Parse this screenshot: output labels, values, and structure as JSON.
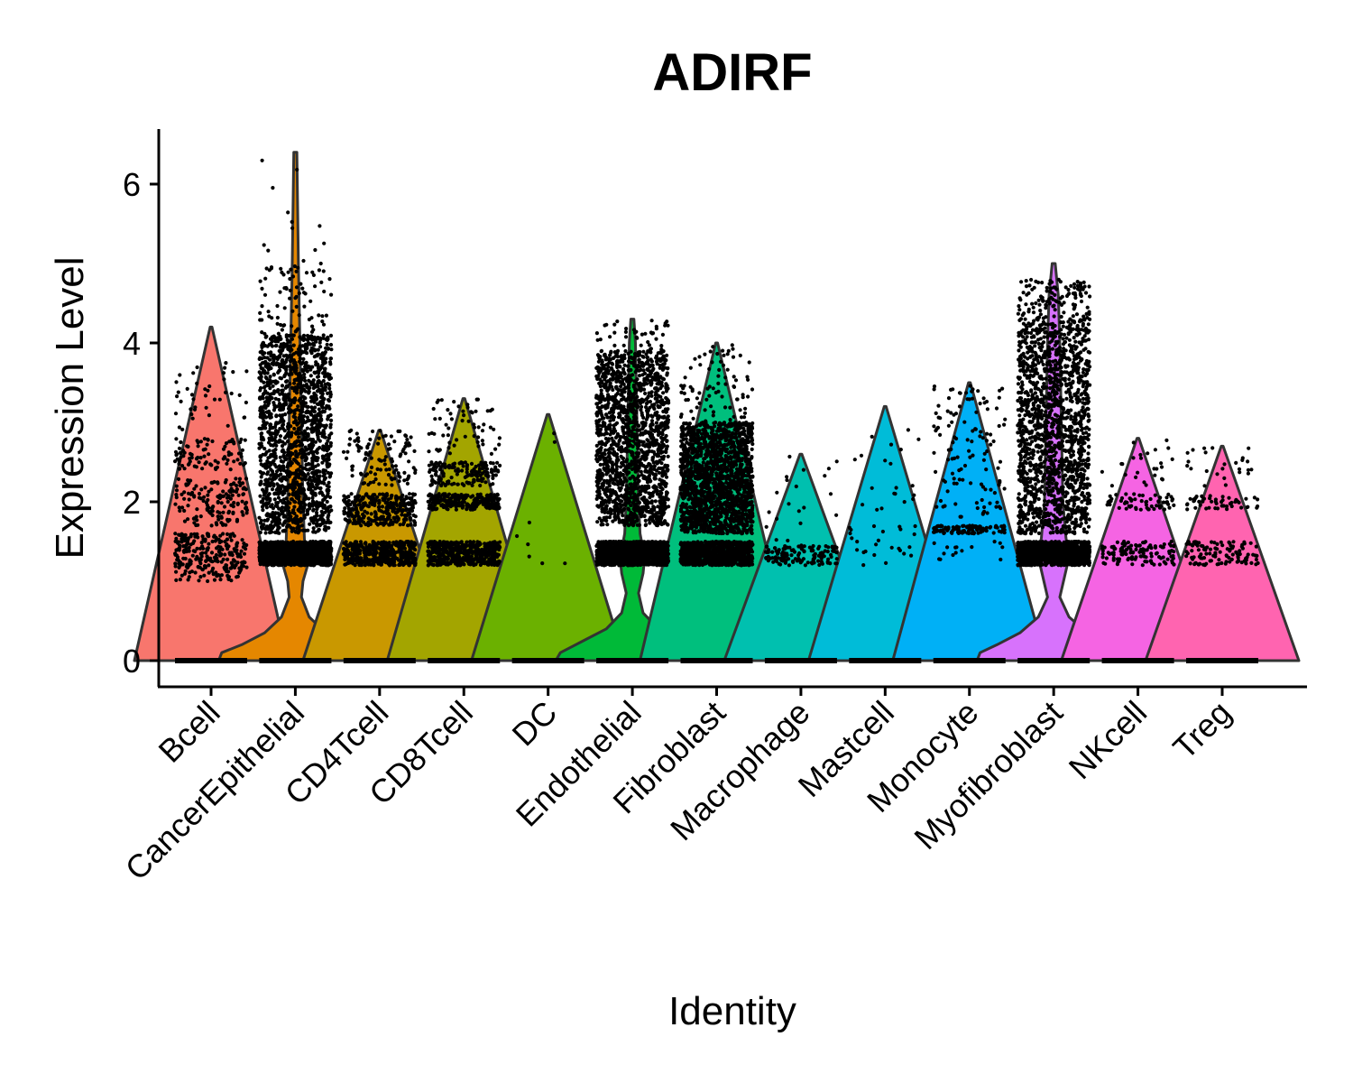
{
  "chart_data": {
    "type": "violin",
    "title": "ADIRF",
    "xlabel": "Identity",
    "ylabel": "Expression Level",
    "ylim": [
      -0.3,
      6.7
    ],
    "yticks": [
      0,
      2,
      4,
      6
    ],
    "grid": false,
    "legend": "none",
    "categories": [
      "Bcell",
      "CancerEpithelial",
      "CD4Tcell",
      "CD8Tcell",
      "DC",
      "Endothelial",
      "Fibroblast",
      "Macrophage",
      "Mastcell",
      "Monocyte",
      "Myofibroblast",
      "NKcell",
      "Treg"
    ],
    "series": [
      {
        "category": "Bcell",
        "max": 4.2,
        "color": "#F8766D",
        "violin": [
          [
            0,
            0.5
          ]
        ],
        "bands": [
          [
            1.0,
            1.6,
            260
          ],
          [
            1.7,
            2.3,
            150
          ],
          [
            2.4,
            2.8,
            90
          ],
          [
            2.9,
            3.8,
            40
          ]
        ]
      },
      {
        "category": "CancerEpithelial",
        "max": 6.4,
        "color": "#E58700",
        "violin": [
          [
            0,
            0.5
          ],
          [
            0.1,
            0.48
          ],
          [
            0.2,
            0.35
          ],
          [
            0.35,
            0.2
          ],
          [
            0.55,
            0.09
          ],
          [
            0.8,
            0.04
          ],
          [
            1.0,
            0.05
          ],
          [
            1.2,
            0.08
          ],
          [
            1.5,
            0.06
          ],
          [
            2.0,
            0.05
          ],
          [
            3.0,
            0.04
          ],
          [
            4.0,
            0.03
          ],
          [
            5.0,
            0.02
          ],
          [
            6.4,
            0.01
          ]
        ],
        "bands": [
          [
            1.2,
            1.5,
            1300
          ],
          [
            1.6,
            4.1,
            6500
          ],
          [
            4.1,
            5.0,
            80
          ],
          [
            5.0,
            6.4,
            12
          ]
        ]
      },
      {
        "category": "CD4Tcell",
        "max": 2.9,
        "color": "#C99800",
        "violin": [
          [
            0,
            0.5
          ]
        ],
        "bands": [
          [
            1.2,
            1.5,
            500
          ],
          [
            1.7,
            2.1,
            300
          ],
          [
            2.2,
            2.9,
            110
          ]
        ]
      },
      {
        "category": "CD8Tcell",
        "max": 3.3,
        "color": "#A3A500",
        "violin": [
          [
            0,
            0.5
          ]
        ],
        "bands": [
          [
            1.2,
            1.5,
            500
          ],
          [
            1.9,
            2.1,
            260
          ],
          [
            2.2,
            2.5,
            160
          ],
          [
            2.6,
            3.3,
            60
          ]
        ]
      },
      {
        "category": "DC",
        "max": 3.1,
        "color": "#6BB100",
        "violin": [
          [
            0,
            0.5
          ]
        ],
        "bands": [
          [
            1.2,
            1.8,
            6
          ],
          [
            2.4,
            3.1,
            2
          ]
        ]
      },
      {
        "category": "Endothelial",
        "max": 4.3,
        "color": "#00BA38",
        "violin": [
          [
            0,
            0.5
          ],
          [
            0.1,
            0.47
          ],
          [
            0.25,
            0.32
          ],
          [
            0.4,
            0.17
          ],
          [
            0.6,
            0.07
          ],
          [
            0.85,
            0.04
          ],
          [
            1.1,
            0.07
          ],
          [
            1.3,
            0.08
          ],
          [
            1.6,
            0.05
          ],
          [
            2.0,
            0.04
          ],
          [
            3.0,
            0.03
          ],
          [
            4.0,
            0.02
          ],
          [
            4.3,
            0.01
          ]
        ],
        "bands": [
          [
            1.2,
            1.5,
            1100
          ],
          [
            1.7,
            3.9,
            4200
          ],
          [
            3.9,
            4.3,
            40
          ]
        ]
      },
      {
        "category": "Fibroblast",
        "max": 4.0,
        "color": "#00BF7D",
        "violin": [
          [
            0,
            0.5
          ]
        ],
        "bands": [
          [
            1.2,
            1.5,
            900
          ],
          [
            1.6,
            2.3,
            900
          ],
          [
            2.3,
            3.0,
            800
          ],
          [
            3.0,
            4.0,
            80
          ]
        ]
      },
      {
        "category": "Macrophage",
        "max": 2.6,
        "color": "#00C0AF",
        "violin": [
          [
            0,
            0.5
          ]
        ],
        "bands": [
          [
            1.2,
            1.45,
            130
          ],
          [
            1.5,
            2.6,
            20
          ]
        ]
      },
      {
        "category": "Mastcell",
        "max": 3.2,
        "color": "#00BCD8",
        "violin": [
          [
            0,
            0.5
          ]
        ],
        "bands": [
          [
            1.2,
            1.7,
            25
          ],
          [
            1.9,
            3.0,
            20
          ]
        ]
      },
      {
        "category": "Monocyte",
        "max": 3.5,
        "color": "#00B0F6",
        "violin": [
          [
            0,
            0.5
          ]
        ],
        "bands": [
          [
            1.2,
            1.5,
            15
          ],
          [
            1.6,
            1.7,
            110
          ],
          [
            1.8,
            3.5,
            120
          ]
        ]
      },
      {
        "category": "Myofibroblast",
        "max": 5.0,
        "color": "#D772FC",
        "violin": [
          [
            0,
            0.5
          ],
          [
            0.1,
            0.48
          ],
          [
            0.2,
            0.37
          ],
          [
            0.35,
            0.22
          ],
          [
            0.55,
            0.1
          ],
          [
            0.8,
            0.04
          ],
          [
            1.05,
            0.07
          ],
          [
            1.3,
            0.1
          ],
          [
            1.55,
            0.08
          ],
          [
            2.0,
            0.06
          ],
          [
            3.0,
            0.05
          ],
          [
            4.0,
            0.04
          ],
          [
            4.6,
            0.03
          ],
          [
            5.0,
            0.01
          ]
        ],
        "bands": [
          [
            1.2,
            1.5,
            1200
          ],
          [
            1.6,
            4.3,
            6200
          ],
          [
            4.3,
            4.8,
            120
          ]
        ]
      },
      {
        "category": "NKcell",
        "max": 2.8,
        "color": "#F564E3",
        "violin": [
          [
            0,
            0.5
          ]
        ],
        "bands": [
          [
            1.2,
            1.5,
            120
          ],
          [
            1.9,
            2.1,
            60
          ],
          [
            2.2,
            2.8,
            25
          ]
        ]
      },
      {
        "category": "Treg",
        "max": 2.7,
        "color": "#FF64B0",
        "violin": [
          [
            0,
            0.5
          ]
        ],
        "bands": [
          [
            1.2,
            1.5,
            110
          ],
          [
            1.9,
            2.1,
            50
          ],
          [
            2.2,
            2.7,
            25
          ]
        ]
      }
    ]
  }
}
